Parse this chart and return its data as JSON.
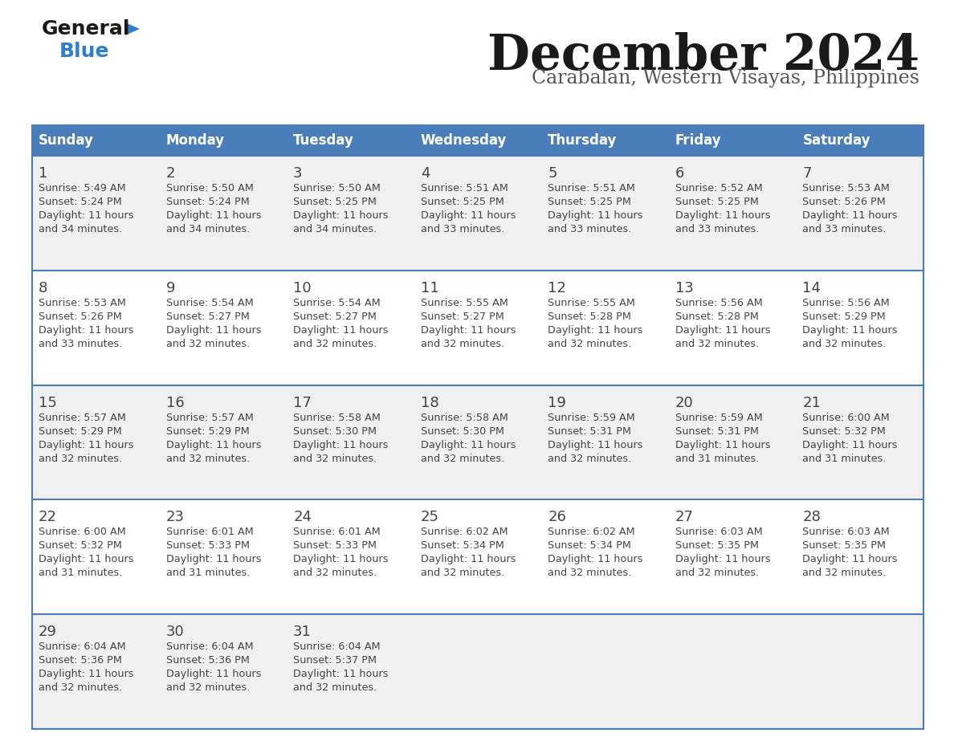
{
  "title": "December 2024",
  "subtitle": "Carabalan, Western Visayas, Philippines",
  "days_of_week": [
    "Sunday",
    "Monday",
    "Tuesday",
    "Wednesday",
    "Thursday",
    "Friday",
    "Saturday"
  ],
  "header_bg": "#4a7ebb",
  "header_text": "#FFFFFF",
  "row_bg_odd": "#f0f0f0",
  "row_bg_even": "#ffffff",
  "row_separator": "#4a7ebb",
  "title_color": "#1a1a1a",
  "subtitle_color": "#555555",
  "day_num_color": "#444444",
  "cell_text_color": "#444444",
  "logo_general_color": "#1a1a1a",
  "logo_blue_color": "#2f7fcd",
  "logo_triangle_color": "#2f7fcd",
  "calendar_data": [
    [
      {
        "day": 1,
        "sunrise": "5:49 AM",
        "sunset": "5:24 PM",
        "daylight": "11 hours and 34 minutes."
      },
      {
        "day": 2,
        "sunrise": "5:50 AM",
        "sunset": "5:24 PM",
        "daylight": "11 hours and 34 minutes."
      },
      {
        "day": 3,
        "sunrise": "5:50 AM",
        "sunset": "5:25 PM",
        "daylight": "11 hours and 34 minutes."
      },
      {
        "day": 4,
        "sunrise": "5:51 AM",
        "sunset": "5:25 PM",
        "daylight": "11 hours and 33 minutes."
      },
      {
        "day": 5,
        "sunrise": "5:51 AM",
        "sunset": "5:25 PM",
        "daylight": "11 hours and 33 minutes."
      },
      {
        "day": 6,
        "sunrise": "5:52 AM",
        "sunset": "5:25 PM",
        "daylight": "11 hours and 33 minutes."
      },
      {
        "day": 7,
        "sunrise": "5:53 AM",
        "sunset": "5:26 PM",
        "daylight": "11 hours and 33 minutes."
      }
    ],
    [
      {
        "day": 8,
        "sunrise": "5:53 AM",
        "sunset": "5:26 PM",
        "daylight": "11 hours and 33 minutes."
      },
      {
        "day": 9,
        "sunrise": "5:54 AM",
        "sunset": "5:27 PM",
        "daylight": "11 hours and 32 minutes."
      },
      {
        "day": 10,
        "sunrise": "5:54 AM",
        "sunset": "5:27 PM",
        "daylight": "11 hours and 32 minutes."
      },
      {
        "day": 11,
        "sunrise": "5:55 AM",
        "sunset": "5:27 PM",
        "daylight": "11 hours and 32 minutes."
      },
      {
        "day": 12,
        "sunrise": "5:55 AM",
        "sunset": "5:28 PM",
        "daylight": "11 hours and 32 minutes."
      },
      {
        "day": 13,
        "sunrise": "5:56 AM",
        "sunset": "5:28 PM",
        "daylight": "11 hours and 32 minutes."
      },
      {
        "day": 14,
        "sunrise": "5:56 AM",
        "sunset": "5:29 PM",
        "daylight": "11 hours and 32 minutes."
      }
    ],
    [
      {
        "day": 15,
        "sunrise": "5:57 AM",
        "sunset": "5:29 PM",
        "daylight": "11 hours and 32 minutes."
      },
      {
        "day": 16,
        "sunrise": "5:57 AM",
        "sunset": "5:29 PM",
        "daylight": "11 hours and 32 minutes."
      },
      {
        "day": 17,
        "sunrise": "5:58 AM",
        "sunset": "5:30 PM",
        "daylight": "11 hours and 32 minutes."
      },
      {
        "day": 18,
        "sunrise": "5:58 AM",
        "sunset": "5:30 PM",
        "daylight": "11 hours and 32 minutes."
      },
      {
        "day": 19,
        "sunrise": "5:59 AM",
        "sunset": "5:31 PM",
        "daylight": "11 hours and 32 minutes."
      },
      {
        "day": 20,
        "sunrise": "5:59 AM",
        "sunset": "5:31 PM",
        "daylight": "11 hours and 31 minutes."
      },
      {
        "day": 21,
        "sunrise": "6:00 AM",
        "sunset": "5:32 PM",
        "daylight": "11 hours and 31 minutes."
      }
    ],
    [
      {
        "day": 22,
        "sunrise": "6:00 AM",
        "sunset": "5:32 PM",
        "daylight": "11 hours and 31 minutes."
      },
      {
        "day": 23,
        "sunrise": "6:01 AM",
        "sunset": "5:33 PM",
        "daylight": "11 hours and 31 minutes."
      },
      {
        "day": 24,
        "sunrise": "6:01 AM",
        "sunset": "5:33 PM",
        "daylight": "11 hours and 32 minutes."
      },
      {
        "day": 25,
        "sunrise": "6:02 AM",
        "sunset": "5:34 PM",
        "daylight": "11 hours and 32 minutes."
      },
      {
        "day": 26,
        "sunrise": "6:02 AM",
        "sunset": "5:34 PM",
        "daylight": "11 hours and 32 minutes."
      },
      {
        "day": 27,
        "sunrise": "6:03 AM",
        "sunset": "5:35 PM",
        "daylight": "11 hours and 32 minutes."
      },
      {
        "day": 28,
        "sunrise": "6:03 AM",
        "sunset": "5:35 PM",
        "daylight": "11 hours and 32 minutes."
      }
    ],
    [
      {
        "day": 29,
        "sunrise": "6:04 AM",
        "sunset": "5:36 PM",
        "daylight": "11 hours and 32 minutes."
      },
      {
        "day": 30,
        "sunrise": "6:04 AM",
        "sunset": "5:36 PM",
        "daylight": "11 hours and 32 minutes."
      },
      {
        "day": 31,
        "sunrise": "6:04 AM",
        "sunset": "5:37 PM",
        "daylight": "11 hours and 32 minutes."
      },
      null,
      null,
      null,
      null
    ]
  ]
}
